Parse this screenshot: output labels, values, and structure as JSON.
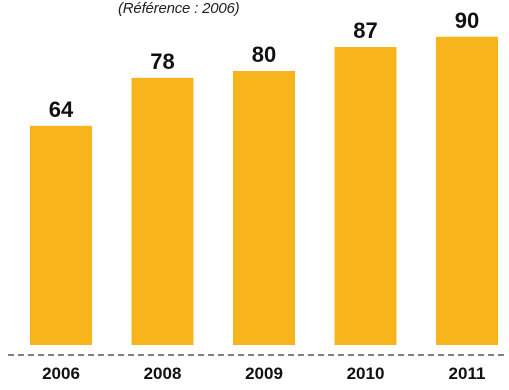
{
  "chart_data": {
    "type": "bar",
    "subtitle": "(Référence : 2006)",
    "categories": [
      "2006",
      "2008",
      "2009",
      "2010",
      "2011"
    ],
    "values": [
      64,
      78,
      80,
      87,
      90
    ],
    "data_labels": [
      "64",
      "78",
      "80",
      "87",
      "90"
    ],
    "title": "",
    "xlabel": "",
    "ylabel": "",
    "ylim": [
      0,
      100
    ],
    "grid": false,
    "legend": "none",
    "bar_color": "#F8B51B",
    "axis_line_style": "dashed",
    "axis_line_color": "#555555",
    "label_color": "#111111"
  }
}
